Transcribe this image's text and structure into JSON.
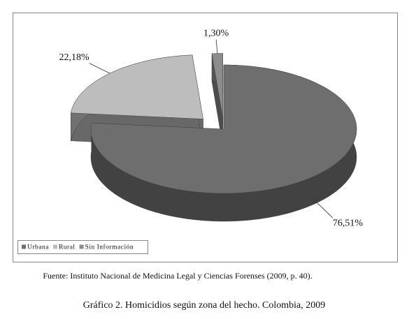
{
  "chart_data": {
    "type": "pie",
    "categories": [
      "Urbana",
      "Rural",
      "Sin Información"
    ],
    "values": [
      76.51,
      22.18,
      1.3
    ],
    "value_labels": [
      "76,51%",
      "22,18%",
      "1,30%"
    ],
    "colors": [
      "#6e6e6e",
      "#bdbdbd",
      "#8c8c8c"
    ],
    "legend": "bottom-left",
    "source": "Fuente: Instituto Nacional de Medicina Legal y Ciencias Forenses (2009, p. 40).",
    "title": "Gráfico 2. Homicidios según zona del hecho. Colombia, 2009"
  }
}
